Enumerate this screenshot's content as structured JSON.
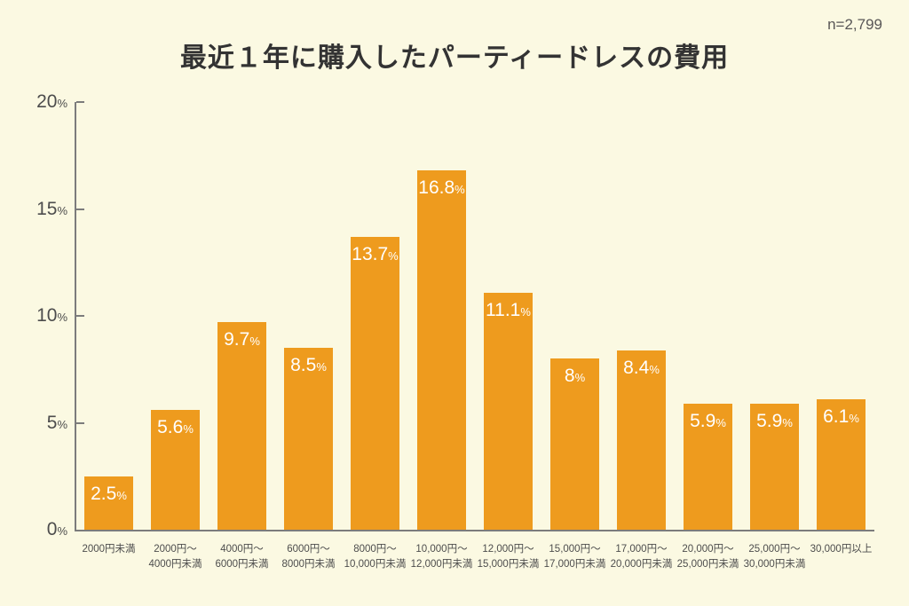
{
  "page": {
    "title": "最近１年に購入したパーティードレスの費用",
    "sample_size_label": "n=2,799"
  },
  "colors": {
    "background": "#FBF9E2",
    "bar": "#EE9B1E",
    "bar_label_text": "#FFFFFF",
    "axis": "#7C7C7C",
    "title_text": "#333333",
    "tick_text": "#4D4D4D",
    "category_text": "#4D4D4D",
    "sample_text": "#595757"
  },
  "chart_data": {
    "type": "bar",
    "title": "最近１年に購入したパーティードレスの費用",
    "sample_size": "n=2,799",
    "categories": [
      [
        "2000円未満"
      ],
      [
        "2000円〜",
        "4000円未満"
      ],
      [
        "4000円〜",
        "6000円未満"
      ],
      [
        "6000円〜",
        "8000円未満"
      ],
      [
        "8000円〜",
        "10,000円未満"
      ],
      [
        "10,000円〜",
        "12,000円未満"
      ],
      [
        "12,000円〜",
        "15,000円未満"
      ],
      [
        "15,000円〜",
        "17,000円未満"
      ],
      [
        "17,000円〜",
        "20,000円未満"
      ],
      [
        "20,000円〜",
        "25,000円未満"
      ],
      [
        "25,000円〜",
        "30,000円未満"
      ],
      [
        "30,000円以上"
      ]
    ],
    "values": [
      2.5,
      5.6,
      9.7,
      8.5,
      13.7,
      16.8,
      11.1,
      8,
      8.4,
      5.9,
      5.9,
      6.1
    ],
    "unit": "%",
    "xlabel": "",
    "ylabel": "",
    "ylim": [
      0,
      20
    ],
    "yticks": [
      20,
      15,
      10,
      5,
      0
    ],
    "grid": false,
    "legend": null
  }
}
